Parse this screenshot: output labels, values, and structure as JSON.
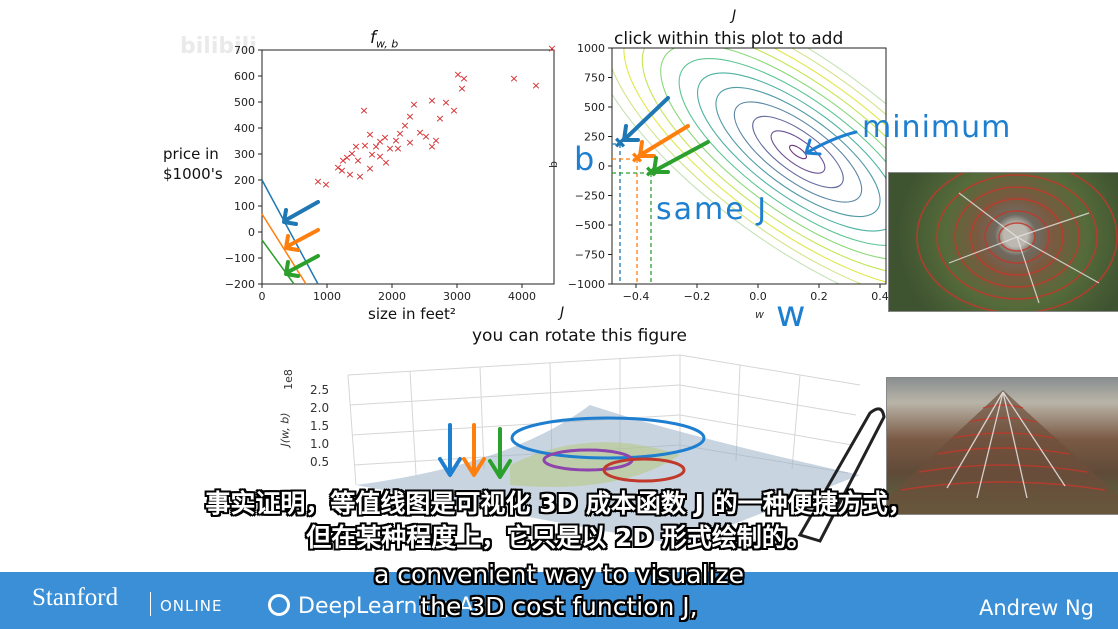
{
  "watermark": "bilibili",
  "left_plot": {
    "title": "f",
    "title_sub": "w, b",
    "ylabel_line1": "price in",
    "ylabel_line2": "$1000's",
    "xlabel": "size in feet²",
    "yticks": [
      "700",
      "600",
      "500",
      "400",
      "300",
      "200",
      "100",
      "0",
      "−100",
      "−200"
    ],
    "xticks": [
      "0",
      "1000",
      "2000",
      "3000",
      "4000"
    ]
  },
  "right_plot": {
    "title_line1": "J",
    "title_line2": "click within this plot to add points",
    "yticks": [
      "1000",
      "750",
      "500",
      "250",
      "0",
      "−250",
      "−500",
      "−750",
      "−1000"
    ],
    "xticks": [
      "−0.4",
      "−0.2",
      "0.0",
      "0.2",
      "0.4"
    ],
    "xlabel": "w",
    "ylabel": "b"
  },
  "annotations": {
    "minimum": "minimum",
    "same_j": "same J",
    "b_label": "b",
    "w_label": "w"
  },
  "surface_plot": {
    "title_line1": "J",
    "title_line2": "you can rotate this figure",
    "zlabel": "J(w, b)",
    "zexp": "1e8",
    "zticks": [
      "2.5",
      "2.0",
      "1.5",
      "1.0",
      "0.5"
    ]
  },
  "subtitles": {
    "zh_line1": "事实证明，等值线图是可视化 3D 成本函数 J 的一种便捷方式，",
    "zh_line2": "但在某种程度上，它只是以 2D 形式绘制的。",
    "en_line1": "a convenient way to visualize",
    "en_line2": "the 3D cost function J,"
  },
  "footer": {
    "brand": "Stanford",
    "online": "ONLINE",
    "deeplearning": "DeepLearning.AI",
    "author": "Andrew Ng"
  },
  "colors": {
    "footer_bg": "#3a8fd6",
    "data_points": "#d62728",
    "arrow_blue": "#1f77b4",
    "arrow_orange": "#ff7f0e",
    "arrow_green": "#2ca02c",
    "handwriting": "#1e7fd0"
  }
}
